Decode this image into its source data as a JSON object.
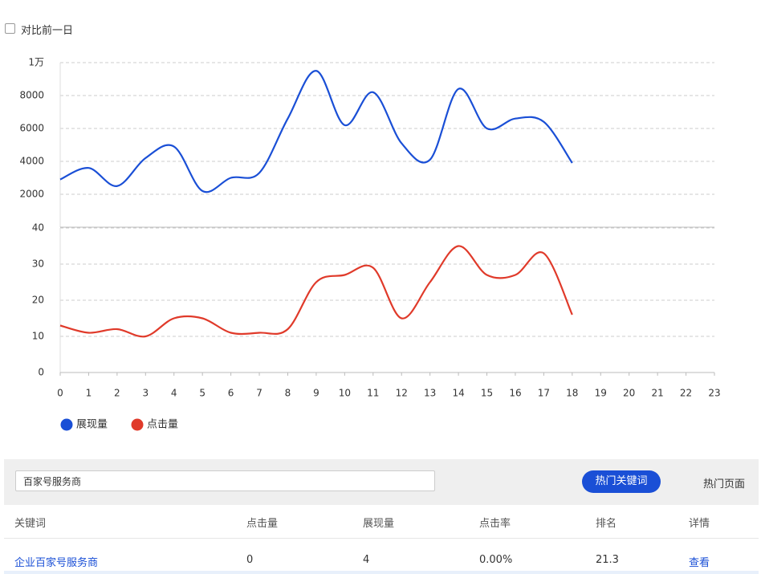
{
  "compare": "对比前一日",
  "chart_data": [
    {
      "type": "line",
      "series": [
        {
          "name": "展现量",
          "color": "#1a4fd6",
          "values": [
            2900,
            3600,
            2500,
            4200,
            4900,
            2200,
            3000,
            3300,
            6600,
            9500,
            6200,
            8200,
            5100,
            4100,
            8400,
            6000,
            6600,
            6400,
            3900
          ]
        }
      ],
      "x": [
        0,
        1,
        2,
        3,
        4,
        5,
        6,
        7,
        8,
        9,
        10,
        11,
        12,
        13,
        14,
        15,
        16,
        17,
        18
      ],
      "xlim": [
        0,
        23
      ],
      "ylim": [
        0,
        10000
      ],
      "yticks": [
        2000,
        4000,
        6000,
        8000,
        {
          "value": 10000,
          "label": "1万"
        }
      ],
      "grid": true
    },
    {
      "type": "line",
      "series": [
        {
          "name": "点击量",
          "color": "#e03a2a",
          "values": [
            13,
            11,
            12,
            10,
            15,
            15,
            11,
            11,
            12,
            25,
            27,
            29,
            15,
            25,
            35,
            27,
            27,
            33,
            16
          ]
        }
      ],
      "x": [
        0,
        1,
        2,
        3,
        4,
        5,
        6,
        7,
        8,
        9,
        10,
        11,
        12,
        13,
        14,
        15,
        16,
        17,
        18
      ],
      "xlim": [
        0,
        23
      ],
      "xticks": [
        0,
        1,
        2,
        3,
        4,
        5,
        6,
        7,
        8,
        9,
        10,
        11,
        12,
        13,
        14,
        15,
        16,
        17,
        18,
        19,
        20,
        21,
        22,
        23
      ],
      "ylim": [
        0,
        40
      ],
      "yticks": [
        0,
        10,
        20,
        30,
        40
      ],
      "grid": true
    }
  ],
  "search": "百家号服务商",
  "tabs": [
    "热门关键词",
    "热门页面"
  ],
  "table": {
    "headers": [
      "关键词",
      "点击量",
      "展现量",
      "点击率",
      "排名",
      "详情"
    ],
    "rows": [
      [
        "企业百家号服务商",
        "0",
        "4",
        "0.00%",
        "21.3",
        "查看"
      ]
    ]
  }
}
